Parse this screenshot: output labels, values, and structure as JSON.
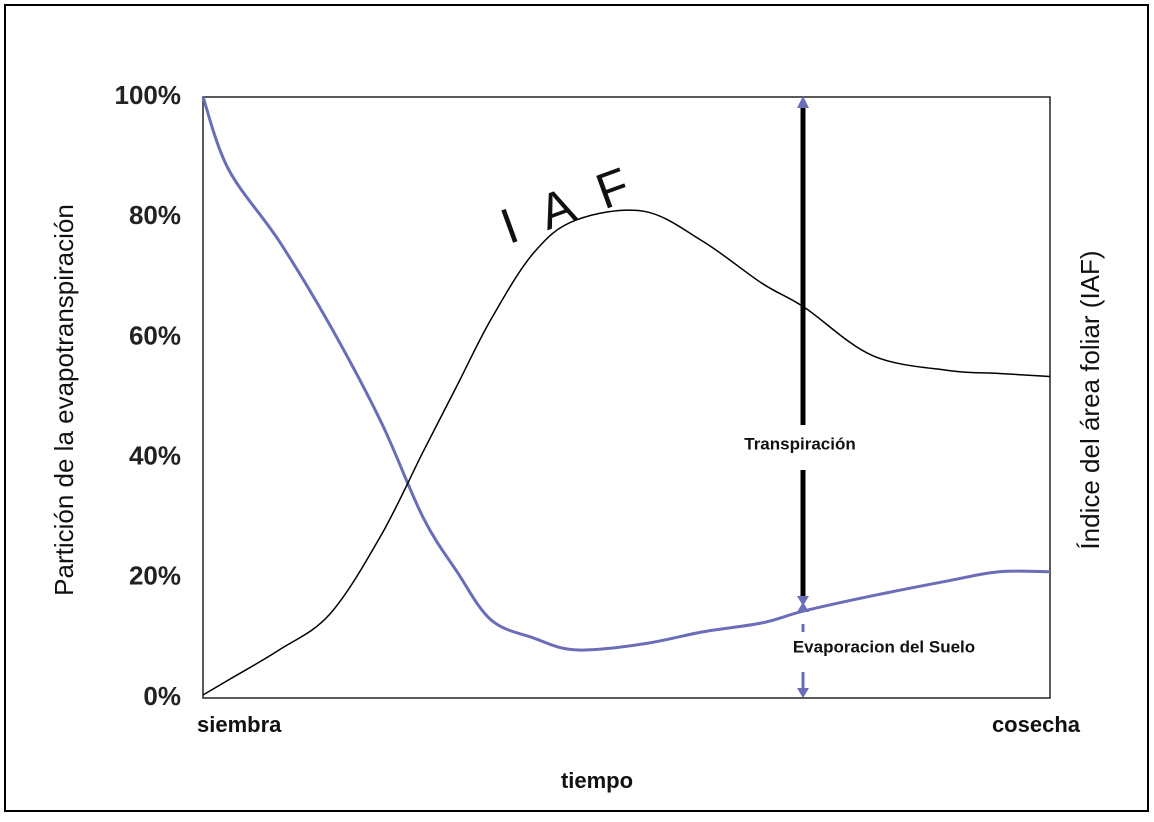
{
  "chart_data": {
    "type": "line",
    "x_axis_label": "tiempo",
    "y_axis_label": "Partición de la evapotranspiración",
    "y2_axis_label": "Índice del área foliar (IAF)",
    "xlim": [
      0,
      100
    ],
    "xticks": [
      {
        "value": 0,
        "label": "siembra"
      },
      {
        "value": 100,
        "label": "cosecha"
      }
    ],
    "ylim": [
      0,
      100
    ],
    "yticks": [
      {
        "value": 0,
        "label": "0%"
      },
      {
        "value": 20,
        "label": "20%"
      },
      {
        "value": 40,
        "label": "40%"
      },
      {
        "value": 60,
        "label": "60%"
      },
      {
        "value": 80,
        "label": "80%"
      },
      {
        "value": 100,
        "label": "100%"
      }
    ],
    "x": [
      0,
      3,
      9,
      15,
      21,
      26,
      30,
      34,
      39,
      44,
      52,
      59,
      66,
      71,
      79,
      88,
      94,
      100
    ],
    "series": [
      {
        "color": "#6a6db8",
        "values": [
          100,
          88,
          76,
          62,
          46,
          30,
          21,
          13,
          10,
          8,
          9,
          11,
          12.5,
          14.5,
          17,
          19.5,
          21,
          21
        ]
      },
      {
        "color": "#000000",
        "values": [
          0.5,
          3,
          8,
          14,
          27,
          41,
          52,
          63,
          74,
          79.5,
          81,
          76,
          69,
          65,
          57,
          54.5,
          54,
          53.5
        ]
      }
    ],
    "annotations": [
      "I A F",
      "Transpiración",
      "Evaporacion del Suelo"
    ]
  }
}
